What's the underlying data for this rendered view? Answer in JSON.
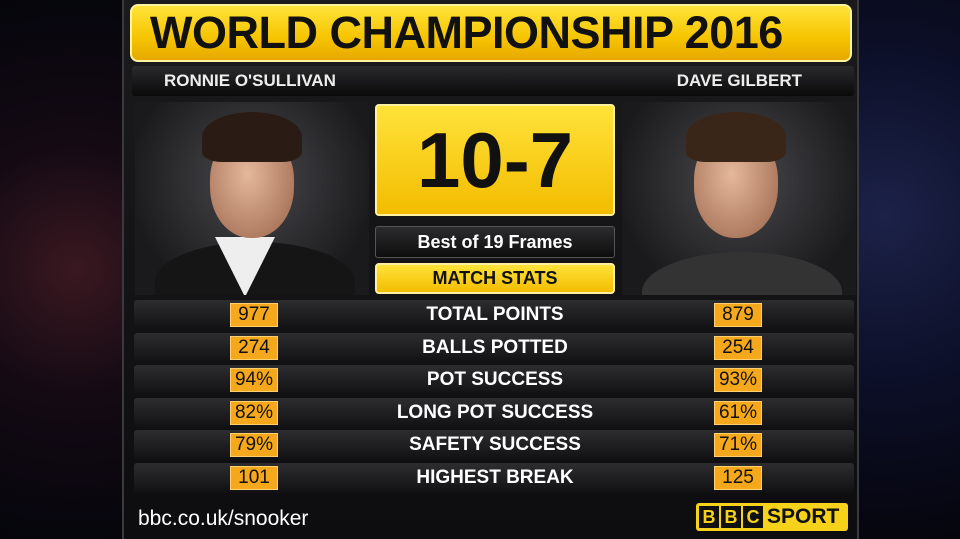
{
  "title": "WORLD CHAMPIONSHIP 2016",
  "players": {
    "left": "RONNIE O'SULLIVAN",
    "right": "DAVE GILBERT"
  },
  "score": "10-7",
  "format": "Best of 19 Frames",
  "section": "MATCH STATS",
  "stats": [
    {
      "label": "TOTAL POINTS",
      "left": "977",
      "right": "879"
    },
    {
      "label": "BALLS POTTED",
      "left": "274",
      "right": "254"
    },
    {
      "label": "POT SUCCESS",
      "left": "94%",
      "right": "93%"
    },
    {
      "label": "LONG POT SUCCESS",
      "left": "82%",
      "right": "61%"
    },
    {
      "label": "SAFETY SUCCESS",
      "left": "79%",
      "right": "71%"
    },
    {
      "label": "HIGHEST BREAK",
      "left": "101",
      "right": "125"
    }
  ],
  "footer": {
    "url": "bbc.co.uk/snooker",
    "logo": "BBC SPORT"
  },
  "colors": {
    "accent_yellow": "#f6c400",
    "stat_orange": "#f6a81c"
  }
}
